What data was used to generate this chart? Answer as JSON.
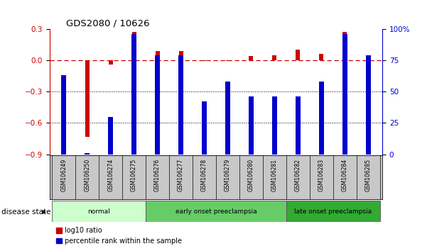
{
  "title": "GDS2080 / 10626",
  "samples": [
    "GSM106249",
    "GSM106250",
    "GSM106274",
    "GSM106275",
    "GSM106276",
    "GSM106277",
    "GSM106278",
    "GSM106279",
    "GSM106280",
    "GSM106281",
    "GSM106282",
    "GSM106283",
    "GSM106284",
    "GSM106285"
  ],
  "log10_ratio": [
    0.0,
    -0.73,
    -0.04,
    0.27,
    0.09,
    0.09,
    -0.01,
    -0.01,
    0.04,
    0.05,
    0.1,
    0.06,
    0.27,
    0.03
  ],
  "percentile_rank": [
    63,
    1,
    30,
    96,
    79,
    79,
    42,
    58,
    46,
    46,
    46,
    58,
    96,
    79
  ],
  "ylim_left": [
    -0.9,
    0.3
  ],
  "ylim_right": [
    0,
    100
  ],
  "yticks_left": [
    -0.9,
    -0.6,
    -0.3,
    0.0,
    0.3
  ],
  "yticks_right": [
    0,
    25,
    50,
    75,
    100
  ],
  "bar_color_red": "#cc0000",
  "bar_color_blue": "#0000cc",
  "dashed_line_color": "#cc0000",
  "groups": [
    {
      "label": "normal",
      "start": 0,
      "end": 3,
      "color": "#ccffcc"
    },
    {
      "label": "early onset preeclampsia",
      "start": 4,
      "end": 9,
      "color": "#66cc66"
    },
    {
      "label": "late onset preeclampsia",
      "start": 10,
      "end": 13,
      "color": "#33aa33"
    }
  ],
  "legend_red": "log10 ratio",
  "legend_blue": "percentile rank within the sample",
  "disease_state_label": "disease state",
  "bg_color": "#ffffff",
  "grid_color": "#000000",
  "tick_label_color_left": "#cc0000",
  "tick_label_color_right": "#0000cc",
  "sample_box_color": "#c8c8c8"
}
